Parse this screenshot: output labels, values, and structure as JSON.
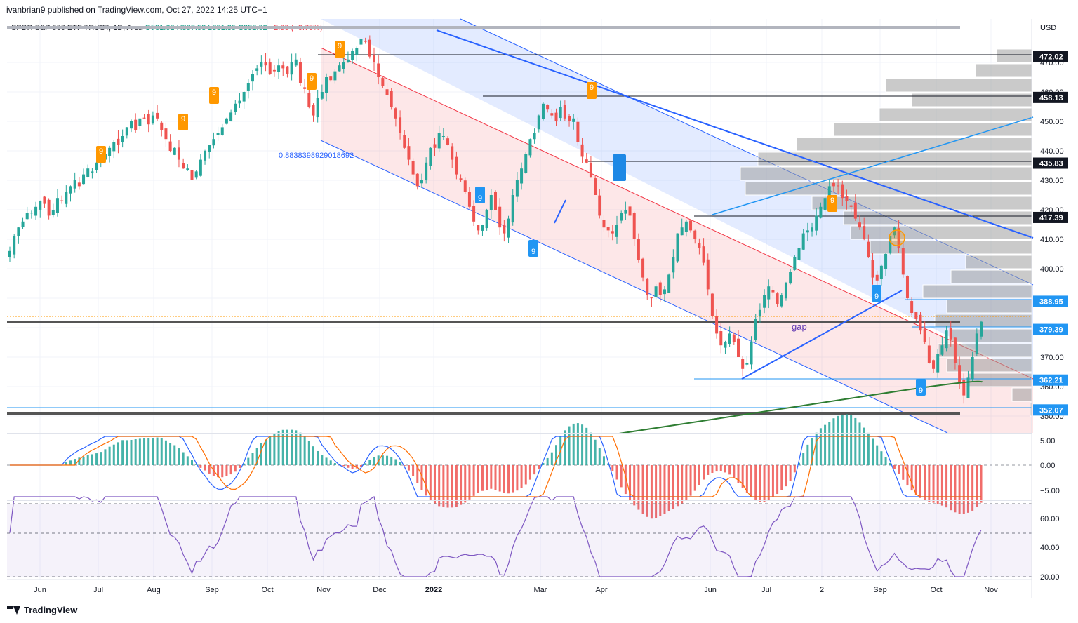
{
  "header": {
    "published": "ivanbrian9 published on TradingView.com, Oct 27, 2022 14:25 UTC+1",
    "symbol": "SPDR S&P 500 ETF TRUST, 1D, Arca",
    "ohlc": "O381.62 H387.58 L381.35 C382.02",
    "change": "−2.90 (−0.75%)"
  },
  "footer": {
    "brand": "TradingView"
  },
  "chart_data": {
    "type": "candlestick",
    "currency": "USD",
    "x_labels": [
      "Jun",
      "Jul",
      "Aug",
      "Sep",
      "Oct",
      "Nov",
      "Dec",
      "2022",
      "Mar",
      "Apr",
      "Jun",
      "Jul",
      "2",
      "Sep",
      "Oct",
      "Nov"
    ],
    "y_ticks": [
      350,
      360,
      370,
      380,
      390,
      400,
      410,
      420,
      430,
      440,
      450,
      460,
      470
    ],
    "price_badges": [
      {
        "label": "472.02",
        "value": 472.02,
        "color": "#131722"
      },
      {
        "label": "458.13",
        "value": 458.13,
        "color": "#131722"
      },
      {
        "label": "435.83",
        "value": 435.83,
        "color": "#131722"
      },
      {
        "label": "417.39",
        "value": 417.39,
        "color": "#131722"
      },
      {
        "label": "388.95",
        "value": 388.95,
        "color": "#2196f3"
      },
      {
        "label": "379.39",
        "value": 379.39,
        "color": "#2196f3"
      },
      {
        "label": "362.21",
        "value": 362.21,
        "color": "#2196f3"
      },
      {
        "label": "352.07",
        "value": 352.07,
        "color": "#2196f3"
      }
    ],
    "annotations": {
      "fib_label": "0.8838398929018692",
      "gap_label": "gap",
      "td_label": "9"
    },
    "closes": [
      406,
      411,
      414,
      416,
      419,
      419,
      421,
      423,
      422,
      418,
      420,
      424,
      423,
      426,
      428,
      430,
      428,
      432,
      434,
      433,
      436,
      436,
      439,
      441,
      443,
      442,
      445,
      448,
      450,
      447,
      451,
      451,
      449,
      452,
      451,
      447,
      444,
      440,
      441,
      437,
      434,
      434,
      430,
      433,
      437,
      440,
      442,
      444,
      446,
      448,
      451,
      453,
      456,
      457,
      460,
      463,
      466,
      468,
      470,
      469,
      466,
      467,
      469,
      468,
      466,
      470,
      471,
      463,
      461,
      455,
      452,
      458,
      460,
      465,
      464,
      467,
      469,
      470,
      471,
      474,
      475,
      478,
      477,
      472,
      470,
      465,
      462,
      459,
      455,
      451,
      446,
      441,
      437,
      432,
      428,
      430,
      436,
      441,
      441,
      446,
      445,
      442,
      437,
      432,
      430,
      426,
      421,
      416,
      413,
      415,
      420,
      425,
      420,
      414,
      412,
      417,
      425,
      430,
      434,
      439,
      444,
      446,
      452,
      456,
      454,
      452,
      450,
      455,
      451,
      450,
      451,
      443,
      438,
      436,
      431,
      425,
      418,
      414,
      413,
      412,
      415,
      419,
      420,
      418,
      410,
      403,
      397,
      391,
      390,
      394,
      391,
      393,
      398,
      404,
      412,
      414,
      416,
      413,
      410,
      407,
      402,
      393,
      384,
      378,
      374,
      375,
      378,
      375,
      370,
      366,
      368,
      375,
      383,
      386,
      391,
      394,
      392,
      388,
      391,
      395,
      399,
      404,
      407,
      412,
      413,
      414,
      418,
      421,
      424,
      428,
      428,
      428,
      424,
      423,
      421,
      417,
      414,
      410,
      404,
      397,
      396,
      401,
      405,
      411,
      414,
      407,
      398,
      390,
      385,
      383,
      379,
      375,
      368,
      366,
      371,
      374,
      379,
      376,
      368,
      361,
      357,
      363,
      370,
      378,
      382
    ]
  }
}
